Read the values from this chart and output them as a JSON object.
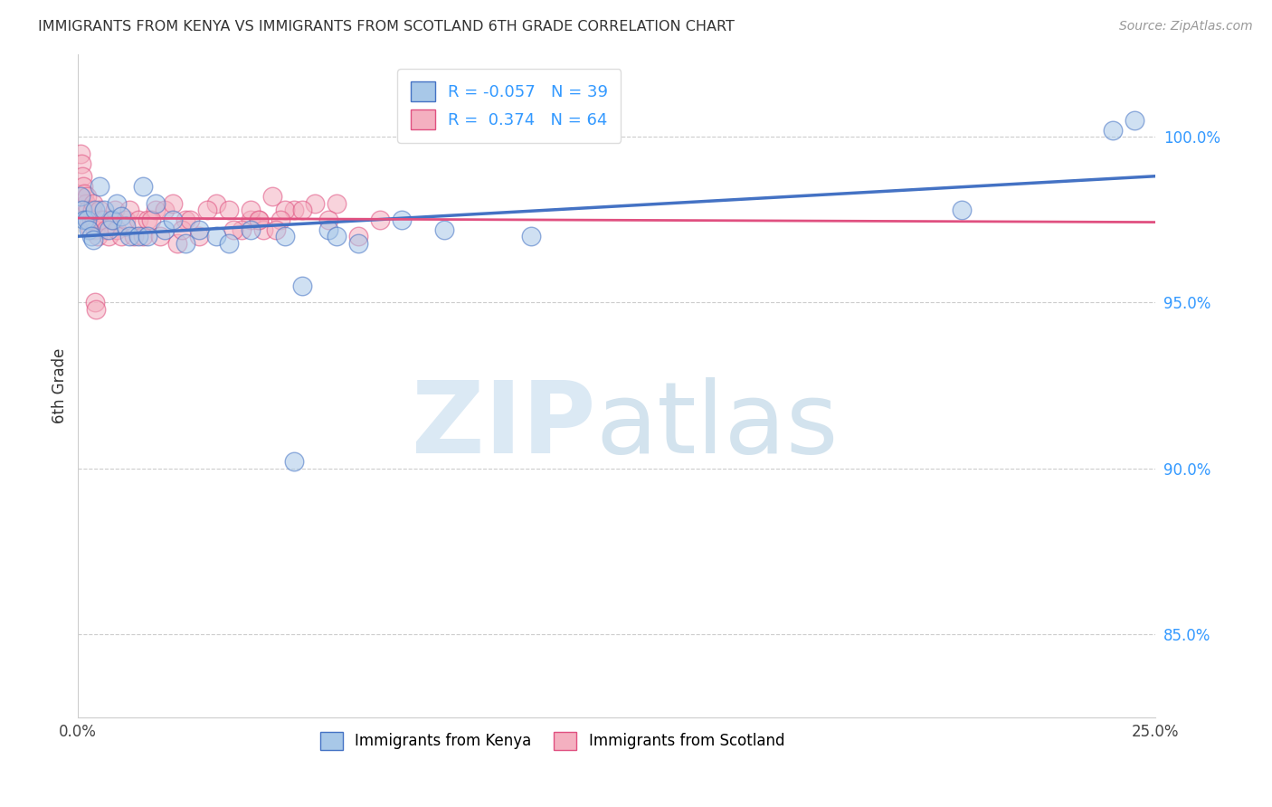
{
  "title": "IMMIGRANTS FROM KENYA VS IMMIGRANTS FROM SCOTLAND 6TH GRADE CORRELATION CHART",
  "source": "Source: ZipAtlas.com",
  "ylabel_left": "6th Grade",
  "ylabel_right_ticks": [
    85.0,
    90.0,
    95.0,
    100.0
  ],
  "xlim": [
    0.0,
    25.0
  ],
  "ylim": [
    82.5,
    102.5
  ],
  "legend_kenya_R": "-0.057",
  "legend_kenya_N": "39",
  "legend_scotland_R": "0.374",
  "legend_scotland_N": "64",
  "legend_label_kenya": "Immigrants from Kenya",
  "legend_label_scotland": "Immigrants from Scotland",
  "color_kenya": "#a8c8e8",
  "color_scotland": "#f4b0c0",
  "color_kenya_line": "#4472c4",
  "color_scotland_line": "#e05080",
  "kenya_x": [
    0.05,
    0.1,
    0.15,
    0.2,
    0.25,
    0.3,
    0.35,
    0.4,
    0.5,
    0.6,
    0.7,
    0.8,
    0.9,
    1.0,
    1.1,
    1.2,
    1.4,
    1.5,
    1.6,
    1.8,
    2.0,
    2.2,
    2.5,
    2.8,
    3.2,
    3.5,
    4.0,
    4.8,
    5.8,
    6.0,
    6.5,
    7.5,
    8.5,
    10.5,
    5.0,
    5.2,
    20.5,
    24.0,
    24.5
  ],
  "kenya_y": [
    98.2,
    97.8,
    97.5,
    97.5,
    97.2,
    97.0,
    96.9,
    97.8,
    98.5,
    97.8,
    97.2,
    97.5,
    98.0,
    97.6,
    97.3,
    97.0,
    97.0,
    98.5,
    97.0,
    98.0,
    97.2,
    97.5,
    96.8,
    97.2,
    97.0,
    96.8,
    97.2,
    97.0,
    97.2,
    97.0,
    96.8,
    97.5,
    97.2,
    97.0,
    90.2,
    95.5,
    97.8,
    100.2,
    100.5
  ],
  "scotland_x": [
    0.05,
    0.08,
    0.1,
    0.12,
    0.15,
    0.18,
    0.2,
    0.22,
    0.25,
    0.28,
    0.3,
    0.32,
    0.35,
    0.38,
    0.4,
    0.45,
    0.5,
    0.55,
    0.6,
    0.65,
    0.7,
    0.8,
    0.85,
    0.9,
    1.0,
    1.1,
    1.2,
    1.3,
    1.4,
    1.5,
    1.6,
    1.8,
    2.0,
    2.2,
    2.5,
    2.8,
    3.2,
    3.5,
    4.0,
    4.5,
    5.0,
    5.5,
    6.0,
    2.3,
    2.4,
    2.6,
    3.0,
    1.7,
    1.9,
    4.2,
    4.8,
    4.3,
    4.7,
    3.8,
    5.2,
    5.8,
    6.5,
    7.0,
    3.6,
    4.0,
    4.2,
    4.6,
    0.4,
    0.42
  ],
  "scotland_y": [
    99.5,
    99.2,
    98.8,
    98.5,
    98.3,
    98.0,
    98.2,
    97.8,
    97.5,
    97.2,
    97.5,
    97.8,
    98.0,
    97.5,
    97.2,
    97.0,
    97.8,
    97.5,
    97.5,
    97.2,
    97.0,
    97.5,
    97.8,
    97.2,
    97.0,
    97.5,
    97.8,
    97.0,
    97.5,
    97.0,
    97.5,
    97.8,
    97.8,
    98.0,
    97.5,
    97.0,
    98.0,
    97.8,
    97.5,
    98.2,
    97.8,
    98.0,
    98.0,
    96.8,
    97.2,
    97.5,
    97.8,
    97.5,
    97.0,
    97.5,
    97.8,
    97.2,
    97.5,
    97.2,
    97.8,
    97.5,
    97.0,
    97.5,
    97.2,
    97.8,
    97.5,
    97.2,
    95.0,
    94.8
  ]
}
